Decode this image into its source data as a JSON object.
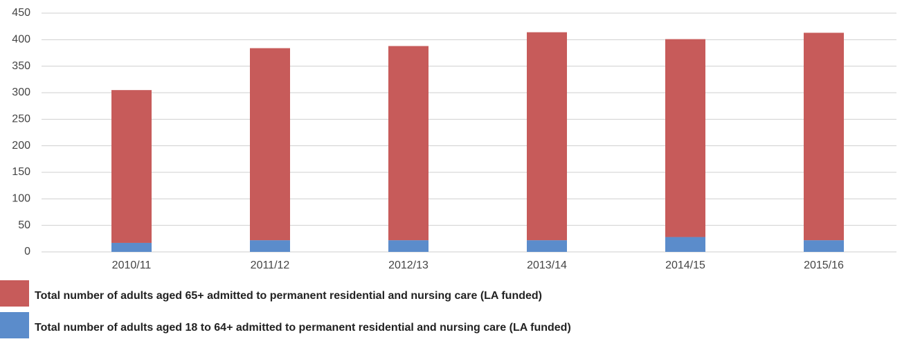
{
  "chart_data": {
    "type": "stacked_bar",
    "categories": [
      "2010/11",
      "2011/12",
      "2012/13",
      "2013/14",
      "2014/15",
      "2015/16"
    ],
    "series": [
      {
        "name": "Total number of adults aged 18 to 64+ admitted to permanent residential and nursing care (LA funded)",
        "color": "#5b8ccb",
        "values": [
          17,
          22,
          22,
          22,
          28,
          22
        ]
      },
      {
        "name": "Total number of adults aged 65+ admitted to permanent residential and nursing care (LA funded)",
        "color": "#c75b5a",
        "values": [
          288,
          362,
          366,
          392,
          373,
          391
        ]
      }
    ],
    "ylim": [
      0,
      450
    ],
    "yticks": [
      0,
      50,
      100,
      150,
      200,
      250,
      300,
      350,
      400,
      450
    ],
    "grid": true
  }
}
